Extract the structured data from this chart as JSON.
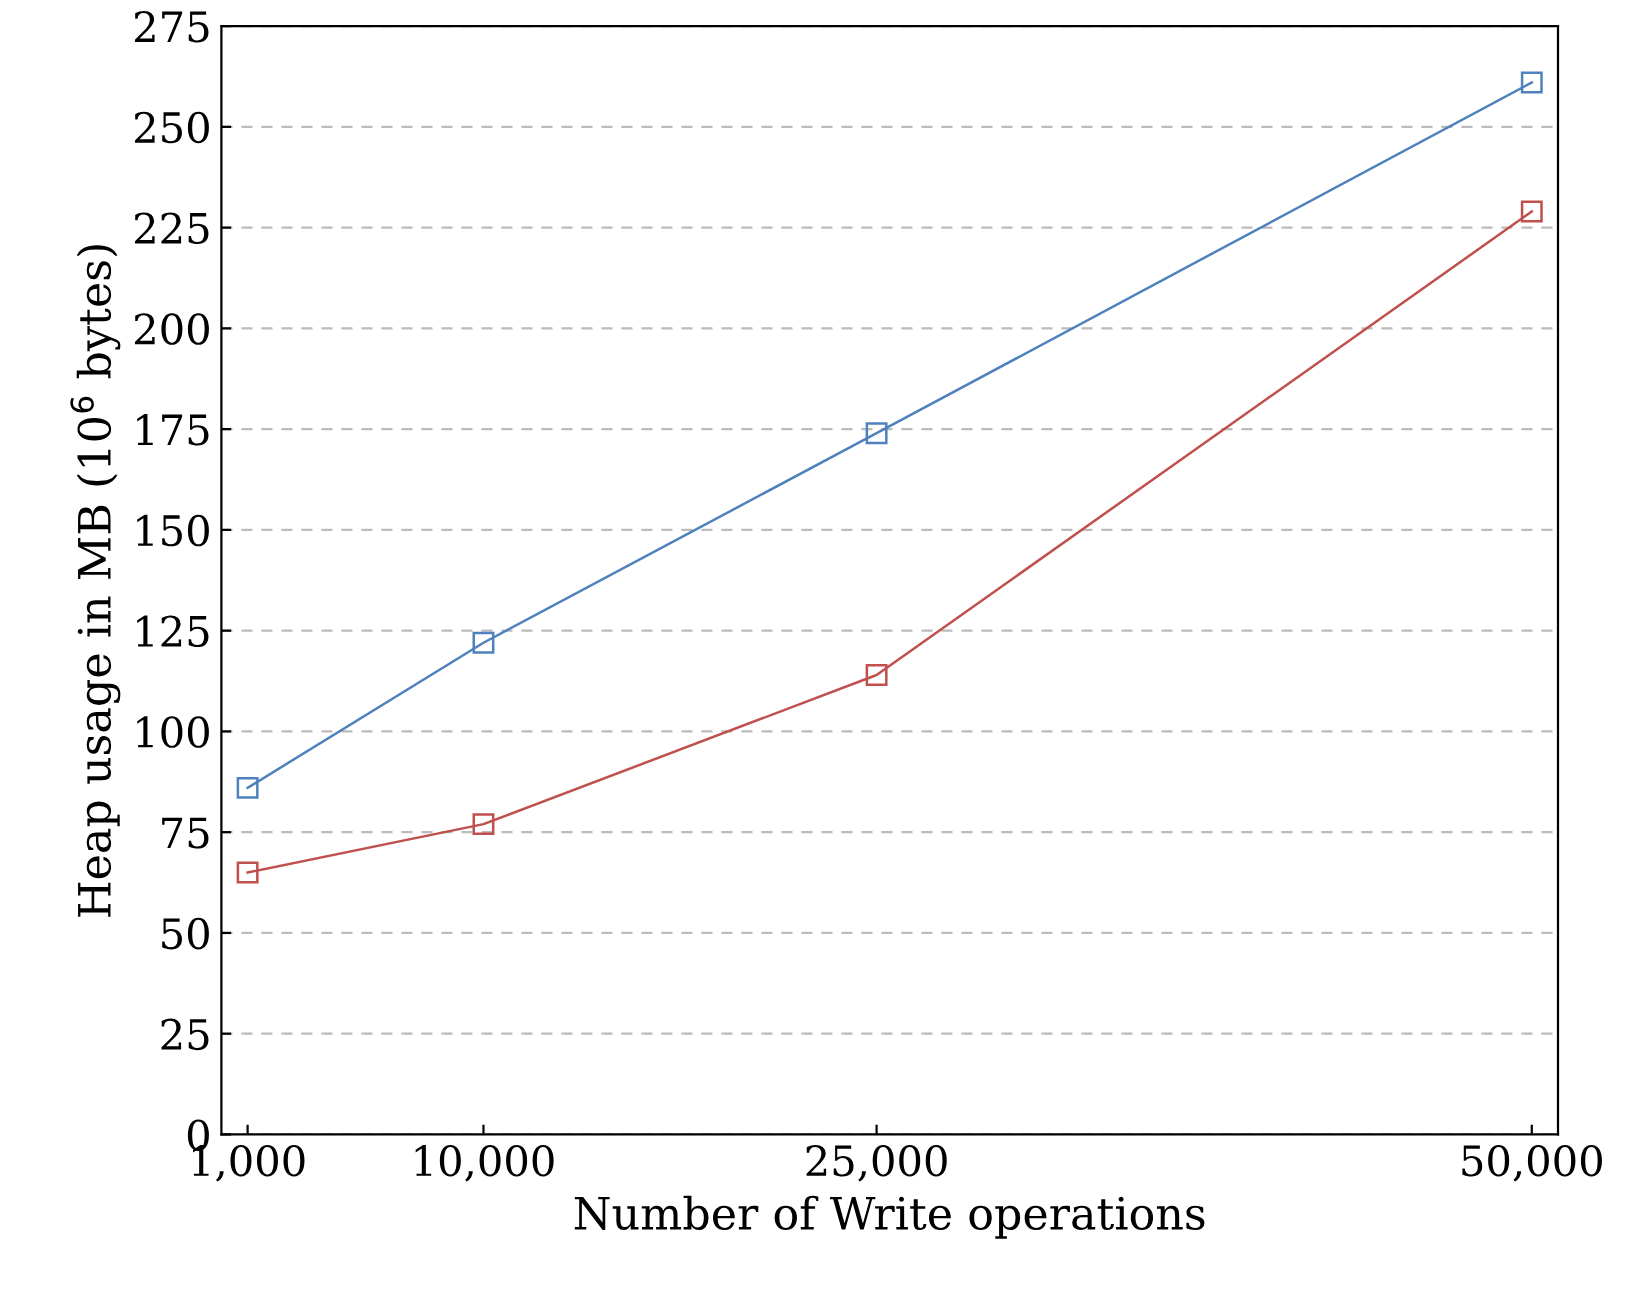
{
  "chart_data": {
    "type": "line",
    "xlabel": "Number of Write operations",
    "ylabel": "Heap usage in MB (10$^{6}$ bytes)",
    "x": [
      1000,
      10000,
      25000,
      50000
    ],
    "series": [
      {
        "color": "#c0504d",
        "values": [
          65,
          77,
          114,
          229
        ]
      },
      {
        "color": "#4f81bd",
        "values": [
          86,
          122,
          174,
          261
        ]
      }
    ],
    "xlim": [
      0,
      51000
    ],
    "xticks": [
      {
        "value": 1000,
        "label": "1,000"
      },
      {
        "value": 10000,
        "label": "10,000"
      },
      {
        "value": 25000,
        "label": "25,000"
      },
      {
        "value": 50000,
        "label": "50,000"
      }
    ],
    "ylim": [
      0,
      275
    ],
    "yticks": [
      0,
      25,
      50,
      75,
      100,
      125,
      150,
      175,
      200,
      225,
      250,
      275
    ],
    "grid": "y",
    "marker": "square",
    "line_style": "solid"
  }
}
